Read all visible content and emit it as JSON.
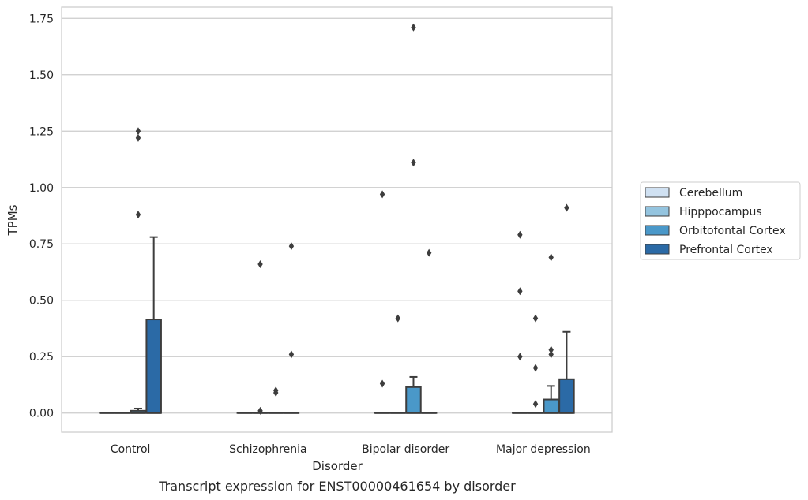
{
  "chart_data": {
    "type": "box",
    "title": "",
    "caption": "Transcript expression for ENST00000461654 by disorder",
    "xlabel": "Disorder",
    "ylabel": "TPMs",
    "ylim": [
      -0.085,
      1.8
    ],
    "yticks": [
      "0.00",
      "0.25",
      "0.50",
      "0.75",
      "1.00",
      "1.25",
      "1.50",
      "1.75"
    ],
    "ytick_values": [
      0,
      0.25,
      0.5,
      0.75,
      1.0,
      1.25,
      1.5,
      1.75
    ],
    "grid": "horizontal",
    "legend_position": "right",
    "categories": [
      "Control",
      "Schizophrenia",
      "Bipolar disorder",
      "Major depression"
    ],
    "series": [
      {
        "name": "Cerebellum",
        "color": "#d0e1f2",
        "boxes": [
          {
            "q1": 0,
            "median": 0,
            "q3": 0,
            "whislo": 0,
            "whishi": 0,
            "fliers": []
          },
          {
            "q1": 0,
            "median": 0,
            "q3": 0,
            "whislo": 0,
            "whishi": 0,
            "fliers": []
          },
          {
            "q1": 0,
            "median": 0,
            "q3": 0,
            "whislo": 0,
            "whishi": 0,
            "fliers": [
              0.97,
              0.13
            ]
          },
          {
            "q1": 0,
            "median": 0,
            "q3": 0,
            "whislo": 0,
            "whishi": 0,
            "fliers": [
              0.79,
              0.54,
              0.25
            ]
          }
        ]
      },
      {
        "name": "Hipppocampus",
        "color": "#94c4df",
        "boxes": [
          {
            "q1": 0,
            "median": 0,
            "q3": 0,
            "whislo": 0,
            "whishi": 0,
            "fliers": []
          },
          {
            "q1": 0,
            "median": 0,
            "q3": 0,
            "whislo": 0,
            "whishi": 0,
            "fliers": [
              0.66,
              0.01
            ]
          },
          {
            "q1": 0,
            "median": 0,
            "q3": 0,
            "whislo": 0,
            "whishi": 0,
            "fliers": [
              0.42
            ]
          },
          {
            "q1": 0,
            "median": 0,
            "q3": 0,
            "whislo": 0,
            "whishi": 0,
            "fliers": [
              0.42,
              0.2,
              0.04
            ]
          }
        ]
      },
      {
        "name": "Orbitofontal Cortex",
        "color": "#4a98c9",
        "boxes": [
          {
            "q1": 0,
            "median": 0,
            "q3": 0.01,
            "whislo": 0,
            "whishi": 0.02,
            "fliers": [
              1.25,
              1.22,
              0.88
            ]
          },
          {
            "q1": 0,
            "median": 0,
            "q3": 0,
            "whislo": 0,
            "whishi": 0,
            "fliers": [
              0.1,
              0.09
            ]
          },
          {
            "q1": 0,
            "median": 0,
            "q3": 0.115,
            "whislo": 0,
            "whishi": 0.16,
            "fliers": [
              1.71,
              1.11
            ]
          },
          {
            "q1": 0,
            "median": 0,
            "q3": 0.06,
            "whislo": 0,
            "whishi": 0.12,
            "fliers": [
              0.69,
              0.28,
              0.26
            ]
          }
        ]
      },
      {
        "name": "Prefrontal Cortex",
        "color": "#2b6aa6",
        "boxes": [
          {
            "q1": 0,
            "median": 0,
            "q3": 0.415,
            "whislo": 0,
            "whishi": 0.78,
            "fliers": []
          },
          {
            "q1": 0,
            "median": 0,
            "q3": 0,
            "whislo": 0,
            "whishi": 0,
            "fliers": [
              0.74,
              0.26
            ]
          },
          {
            "q1": 0,
            "median": 0,
            "q3": 0,
            "whislo": 0,
            "whishi": 0,
            "fliers": [
              0.71
            ]
          },
          {
            "q1": 0,
            "median": 0,
            "q3": 0.15,
            "whislo": 0,
            "whishi": 0.36,
            "fliers": [
              0.91
            ]
          }
        ]
      }
    ]
  }
}
